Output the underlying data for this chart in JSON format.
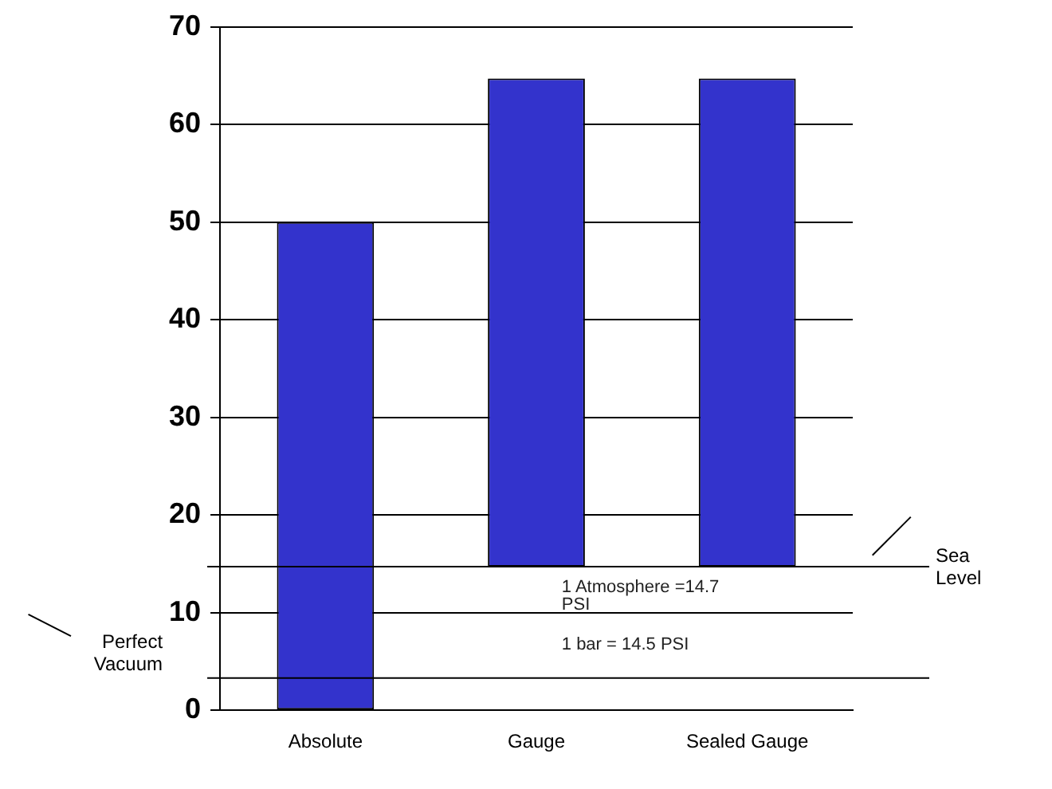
{
  "chart_data": {
    "type": "bar",
    "categories": [
      "Absolute",
      "Gauge",
      "Sealed Gauge"
    ],
    "values": [
      50,
      50,
      50
    ],
    "base": [
      0,
      14.7,
      14.7
    ],
    "color": "#3333cc",
    "ylim": [
      0,
      70
    ],
    "yticks": [
      0,
      10,
      20,
      30,
      40,
      50,
      60,
      70
    ],
    "grid": "y",
    "legend": false,
    "ref_lines": [
      {
        "axis": "y",
        "value": 14.7,
        "label": "Sea Level"
      },
      {
        "axis": "y",
        "value": 3.3,
        "label": "Perfect Vacuum"
      }
    ],
    "annotations": [
      "1 Atmosphere =14.7 PSI",
      "1 bar = 14.5 PSI"
    ]
  }
}
